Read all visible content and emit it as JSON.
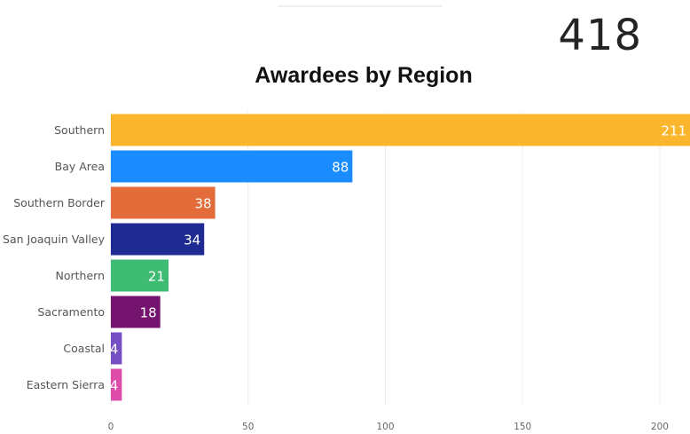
{
  "kpi": {
    "value": "418"
  },
  "chart_data": {
    "type": "bar",
    "orientation": "horizontal",
    "title": "Awardees by Region",
    "xlabel": "",
    "ylabel": "",
    "categories": [
      "Southern",
      "Bay Area",
      "Southern Border",
      "San Joaquin Valley",
      "Northern",
      "Sacramento",
      "Coastal",
      "Eastern Sierra"
    ],
    "values": [
      211,
      88,
      38,
      34,
      21,
      18,
      4,
      4
    ],
    "colors": [
      "#fbb62e",
      "#1a8cff",
      "#e46c3b",
      "#1f2b93",
      "#3fbc73",
      "#74146f",
      "#744ec2",
      "#de4ca9"
    ],
    "xlim": [
      0,
      211
    ],
    "xticks": [
      0,
      50,
      100,
      150,
      200
    ],
    "grid": true,
    "data_labels": true,
    "legend": "none"
  }
}
